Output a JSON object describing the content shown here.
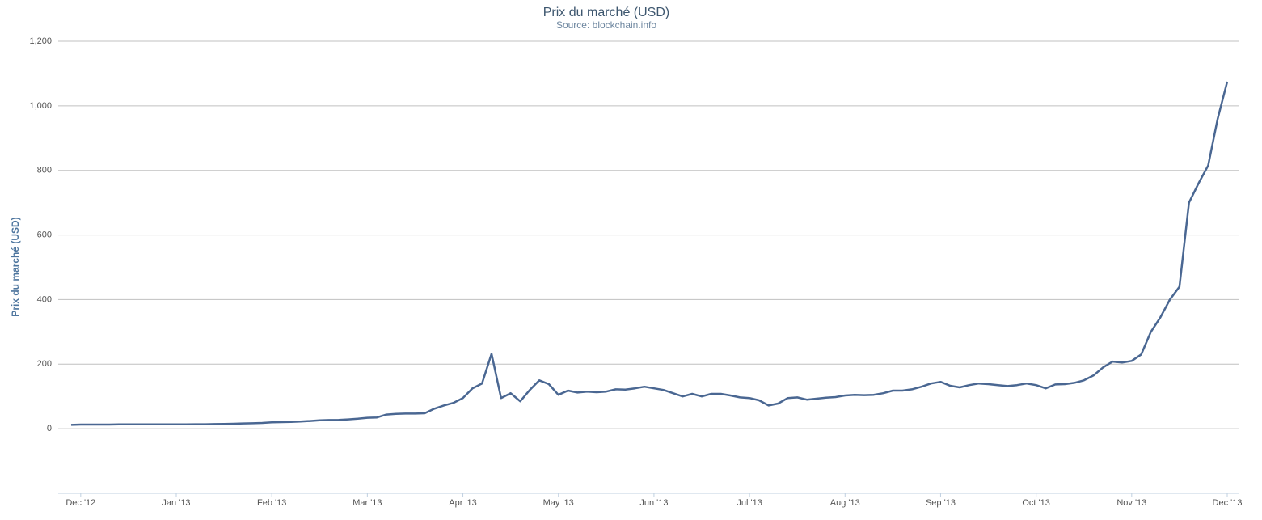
{
  "chart_data": {
    "type": "line",
    "title": "Prix du marché (USD)",
    "subtitle": "Source: blockchain.info",
    "y_label": "Prix du marché (USD)",
    "categories": [
      null,
      "Dec '12",
      null,
      null,
      null,
      null,
      null,
      null,
      null,
      null,
      null,
      "Jan '13",
      null,
      null,
      null,
      null,
      null,
      null,
      null,
      null,
      null,
      "Feb '13",
      null,
      null,
      null,
      null,
      null,
      null,
      null,
      null,
      null,
      "Mar '13",
      null,
      null,
      null,
      null,
      null,
      null,
      null,
      null,
      null,
      "Apr '13",
      null,
      null,
      null,
      null,
      null,
      null,
      null,
      null,
      null,
      "May '13",
      null,
      null,
      null,
      null,
      null,
      null,
      null,
      null,
      null,
      "Jun '13",
      null,
      null,
      null,
      null,
      null,
      null,
      null,
      null,
      null,
      "Jul '13",
      null,
      null,
      null,
      null,
      null,
      null,
      null,
      null,
      null,
      "Aug '13",
      null,
      null,
      null,
      null,
      null,
      null,
      null,
      null,
      null,
      "Sep '13",
      null,
      null,
      null,
      null,
      null,
      null,
      null,
      null,
      null,
      "Oct '13",
      null,
      null,
      null,
      null,
      null,
      null,
      null,
      null,
      null,
      "Nov '13",
      null,
      null,
      null,
      null,
      null,
      null,
      null,
      null,
      null,
      "Dec '13"
    ],
    "series": [
      {
        "name": "Prix du marché (USD)",
        "color": "#4a6792",
        "values": [
          12,
          13,
          13,
          13,
          13,
          13.5,
          13.5,
          13.3,
          13.4,
          13.4,
          13.5,
          13.5,
          13.6,
          13.8,
          14,
          14.5,
          15,
          15.5,
          16.5,
          17,
          18,
          20,
          20.5,
          21,
          22.5,
          24,
          26,
          27,
          27.5,
          29,
          31,
          34,
          35,
          44,
          46,
          47,
          47,
          48,
          62,
          72,
          80,
          95,
          125,
          140,
          232,
          95,
          110,
          85,
          120,
          150,
          138,
          105,
          118,
          112,
          115,
          113,
          115,
          122,
          121,
          125,
          130,
          125,
          120,
          110,
          100,
          108,
          100,
          108,
          108,
          103,
          97,
          95,
          88,
          72,
          78,
          95,
          97,
          90,
          93,
          96,
          98,
          103,
          105,
          104,
          105,
          110,
          118,
          118,
          122,
          130,
          140,
          145,
          133,
          128,
          135,
          140,
          138,
          135,
          132,
          135,
          140,
          135,
          125,
          137,
          138,
          142,
          150,
          165,
          190,
          208,
          205,
          210,
          230,
          300,
          345,
          400,
          440,
          700,
          760,
          815,
          960,
          1075
        ]
      }
    ],
    "ylim": [
      -200,
      1200
    ],
    "yticks": [
      0,
      200,
      400,
      600,
      800,
      {
        "value": 1000,
        "label": "1,000"
      },
      {
        "value": 1200,
        "label": "1,200"
      }
    ],
    "grid": true
  }
}
